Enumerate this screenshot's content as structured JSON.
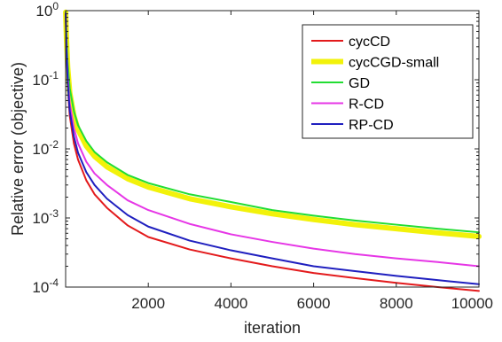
{
  "chart_data": {
    "type": "line",
    "xlabel": "iteration",
    "ylabel": "Relative error (objective)",
    "xscale": "linear",
    "yscale": "log",
    "xlim": [
      0,
      10000
    ],
    "ylim": [
      0.0001,
      1
    ],
    "grid": false,
    "legend_position": "top-right",
    "x_ticks": [
      2000,
      4000,
      6000,
      8000,
      10000
    ],
    "x_tick_labels": [
      "2000",
      "4000",
      "6000",
      "8000",
      "10000"
    ],
    "y_ticks": [
      0.0001,
      0.001,
      0.01,
      0.1,
      1
    ],
    "y_tick_labels": [
      {
        "base": "10",
        "exp": "-4"
      },
      {
        "base": "10",
        "exp": "-3"
      },
      {
        "base": "10",
        "exp": "-2"
      },
      {
        "base": "10",
        "exp": "-1"
      },
      {
        "base": "10",
        "exp": "0"
      }
    ],
    "x": [
      1,
      20,
      50,
      100,
      200,
      300,
      500,
      700,
      1000,
      1500,
      2000,
      3000,
      4000,
      5000,
      6000,
      7000,
      8000,
      9000,
      10000
    ],
    "series": [
      {
        "name": "cycCD",
        "color": "#e31a1c",
        "width": 2,
        "values": [
          0.9,
          0.25,
          0.08,
          0.03,
          0.012,
          0.007,
          0.0035,
          0.0022,
          0.0014,
          0.00078,
          0.00053,
          0.00035,
          0.00026,
          0.0002,
          0.00016,
          0.000135,
          0.000115,
          0.0001,
          8.8e-05
        ]
      },
      {
        "name": "cycCGD-small",
        "color": "#f2f20a",
        "width": 6,
        "values": [
          0.95,
          0.4,
          0.15,
          0.065,
          0.03,
          0.019,
          0.011,
          0.0078,
          0.0055,
          0.0037,
          0.0028,
          0.0019,
          0.00145,
          0.00115,
          0.00095,
          0.0008,
          0.0007,
          0.00061,
          0.00054
        ]
      },
      {
        "name": "GD",
        "color": "#22dd33",
        "width": 2,
        "values": [
          0.95,
          0.42,
          0.17,
          0.075,
          0.035,
          0.022,
          0.013,
          0.009,
          0.0064,
          0.0042,
          0.0032,
          0.0022,
          0.0017,
          0.0013,
          0.00108,
          0.00092,
          0.0008,
          0.0007,
          0.00062
        ]
      },
      {
        "name": "R-CD",
        "color": "#e636e6",
        "width": 2,
        "values": [
          0.92,
          0.3,
          0.11,
          0.045,
          0.02,
          0.012,
          0.0065,
          0.0044,
          0.003,
          0.0018,
          0.0013,
          0.00082,
          0.00058,
          0.00045,
          0.00036,
          0.0003,
          0.00026,
          0.00023,
          0.0002
        ]
      },
      {
        "name": "RP-CD",
        "color": "#1f1fbf",
        "width": 2,
        "values": [
          0.9,
          0.27,
          0.09,
          0.035,
          0.015,
          0.0088,
          0.0046,
          0.003,
          0.0019,
          0.0011,
          0.00075,
          0.00047,
          0.00034,
          0.00026,
          0.0002,
          0.00017,
          0.000145,
          0.000126,
          0.00011
        ]
      }
    ]
  }
}
